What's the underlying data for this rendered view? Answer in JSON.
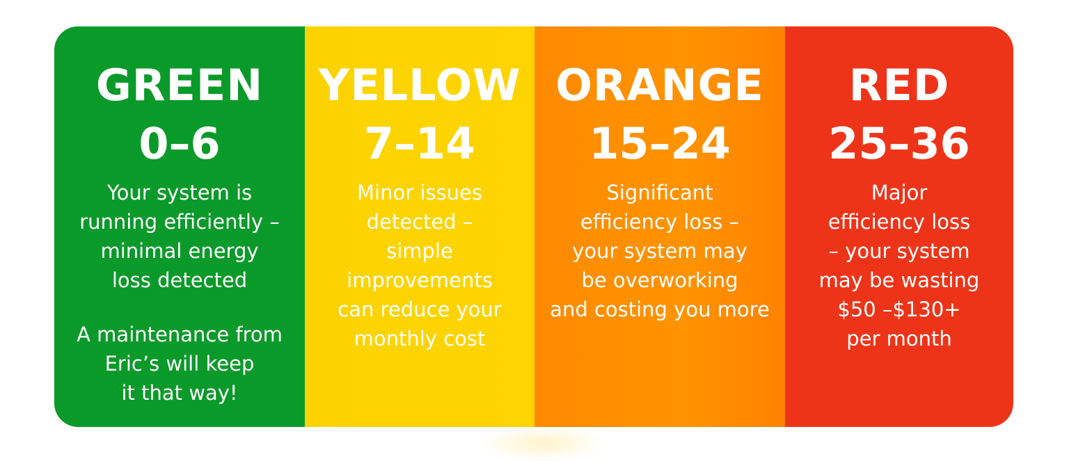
{
  "panels": [
    {
      "level": "GREEN",
      "range": "0–6",
      "description": "Your system is\nrunning efficiently –\nminimal energy\nloss detected",
      "note": "A maintenance from\nEric’s will keep\nit that way!",
      "color": "#0a9a2a"
    },
    {
      "level": "YELLOW",
      "range": "7–14",
      "description": "Minor issues\ndetected –\nsimple\nimprovements\ncan reduce your\nmonthly cost",
      "color": "#ffd400"
    },
    {
      "level": "ORANGE",
      "range": "15–24",
      "description": "Significant\nefficiency loss –\nyour system may\nbe overworking\nand costing you more",
      "color": "#ff8c00"
    },
    {
      "level": "RED",
      "range": "25–36",
      "description": "Major\nefficiency loss\n– your system\nmay be wasting\n$50 –$130+\nper month",
      "color": "#ee3418"
    }
  ]
}
